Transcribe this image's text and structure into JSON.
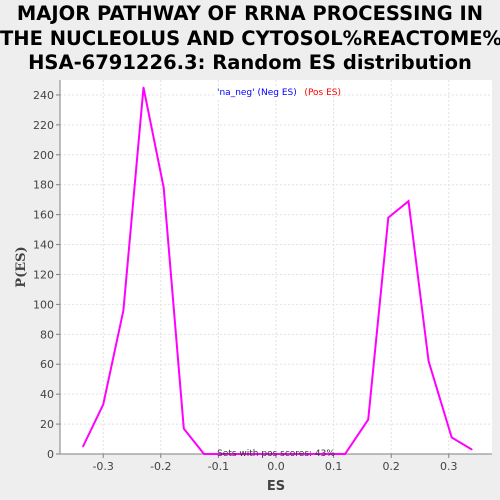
{
  "chart_data": {
    "type": "line",
    "title_lines": [
      "MAJOR PATHWAY OF RRNA PROCESSING IN",
      "THE NUCLEOLUS AND CYTOSOL%REACTOME%R-",
      "HSA-6791226.3: Random ES distribution"
    ],
    "xlabel": "ES",
    "ylabel": "P(ES)",
    "xlim": [
      -0.375,
      0.375
    ],
    "ylim": [
      0,
      250
    ],
    "xticks": [
      -0.3,
      -0.2,
      -0.1,
      0.0,
      0.1,
      0.2,
      0.3
    ],
    "xtick_labels": [
      "-0.3",
      "-0.2",
      "-0.1",
      "0.0",
      "0.1",
      "0.2",
      "0.3"
    ],
    "yticks": [
      0,
      20,
      40,
      60,
      80,
      100,
      120,
      140,
      160,
      180,
      200,
      220,
      240
    ],
    "ytick_labels": [
      "0",
      "20",
      "40",
      "60",
      "80",
      "100",
      "120",
      "140",
      "160",
      "180",
      "200",
      "220",
      "240"
    ],
    "grid": true,
    "legend": {
      "placement": "top-center",
      "neg_label": "'na_neg' (Neg ES)",
      "pos_label": "'na_pos' (Pos ES)"
    },
    "annotation": "Sets with pos scores: 43%",
    "line_color": "#ff00ff",
    "series": [
      {
        "x": [
          -0.335,
          -0.3,
          -0.265,
          -0.23,
          -0.195,
          -0.16,
          -0.125,
          -0.09,
          -0.055,
          -0.02,
          0.015,
          0.05,
          0.085,
          0.12,
          0.16,
          0.195,
          0.23,
          0.265,
          0.305,
          0.34
        ],
        "y": [
          5,
          33,
          96,
          245,
          178,
          17,
          0,
          0,
          0,
          0,
          0,
          0,
          0,
          0,
          23,
          158,
          169,
          62,
          11,
          3
        ]
      }
    ]
  }
}
